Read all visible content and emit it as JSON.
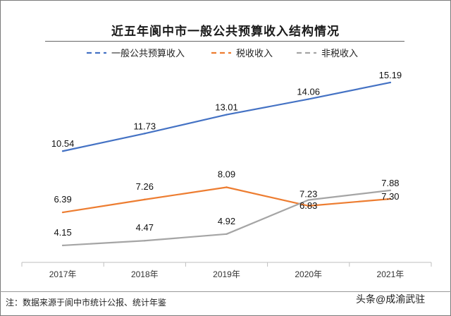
{
  "title": "近五年阆中市一般公共预算收入结构情况",
  "footnote": "注：数据来源于阆中市统计公报、统计年鉴",
  "watermark": "头条@成渝武驻",
  "colors": {
    "general_budget": "#4472C4",
    "tax": "#ED7D31",
    "non_tax": "#A5A5A5"
  },
  "chart_data": {
    "type": "line",
    "categories": [
      "2017年",
      "2018年",
      "2019年",
      "2020年",
      "2021年"
    ],
    "series": [
      {
        "name": "一般公共预算收入",
        "values": [
          10.54,
          11.73,
          13.01,
          14.06,
          15.19
        ],
        "color": "#4472C4"
      },
      {
        "name": "税收收入",
        "values": [
          6.39,
          7.26,
          8.09,
          6.83,
          7.3
        ],
        "color": "#ED7D31"
      },
      {
        "name": "非税收入",
        "values": [
          4.15,
          4.47,
          4.92,
          7.23,
          7.88
        ],
        "color": "#A5A5A5"
      }
    ],
    "data_labels": [
      [
        "10.54",
        "11.73",
        "13.01",
        "14.06",
        "15.19"
      ],
      [
        "6.39",
        "7.26",
        "8.09",
        "6.83",
        "7.30"
      ],
      [
        "4.15",
        "4.47",
        "4.92",
        "7.23",
        "7.88"
      ]
    ],
    "ylim": [
      3,
      16
    ],
    "legend_position": "top",
    "legend_style": "dashed",
    "grid": false
  }
}
